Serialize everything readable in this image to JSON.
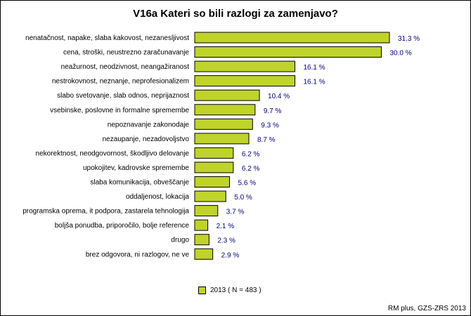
{
  "title": "V16a Kateri so bili razlogi za zamenjavo?",
  "source": "RM plus, GZS-ZRS 2013",
  "colors": {
    "bar": "#bfd32b",
    "bar_border": "#000000",
    "value_text": "#000080"
  },
  "chart_data": {
    "type": "bar",
    "orientation": "horizontal",
    "categories": [
      "nenatačnost, napake, slaba kakovost, nezanesljivost",
      "cena, stroški, neustrezno zaračunavanje",
      "neažurnost, neodzivnost, neangažiranost",
      "nestrokovnost, neznanje, neprofesionalizem",
      "slabo svetovanje, slab odnos, neprijaznost",
      "vsebinske, poslovne in formalne spremembe",
      "nepoznavanje zakonodaje",
      "nezaupanje, nezadovoljstvo",
      "nekorektnost, neodgovornost, škodljivo delovanje",
      "upokojitev, kadrovske spremembe",
      "slaba komunikacija, obveščanje",
      "oddaljenost, lokacija",
      "programska oprema, it podpora, zastarela tehnologija",
      "boljša ponudba, priporočilo, bolje reference",
      "drugo",
      "brez odgovora, ni razlogov, ne ve"
    ],
    "series": [
      {
        "name": "2013 ( N = 483 )",
        "values": [
          31.3,
          30.0,
          16.1,
          16.1,
          10.4,
          9.7,
          9.3,
          8.7,
          6.2,
          6.2,
          5.6,
          5.0,
          3.7,
          2.1,
          2.3,
          2.9
        ]
      }
    ],
    "value_labels": [
      "31.3 %",
      "30.0 %",
      "16.1 %",
      "16.1 %",
      "10.4 %",
      "9.7 %",
      "9.3 %",
      "8.7 %",
      "6.2 %",
      "6.2 %",
      "5.6 %",
      "5.0 %",
      "3.7 %",
      "2.1 %",
      "2.3 %",
      "2.9 %"
    ],
    "xlim": [
      0,
      31.3
    ],
    "grid": false,
    "legend": "bottom-center"
  }
}
